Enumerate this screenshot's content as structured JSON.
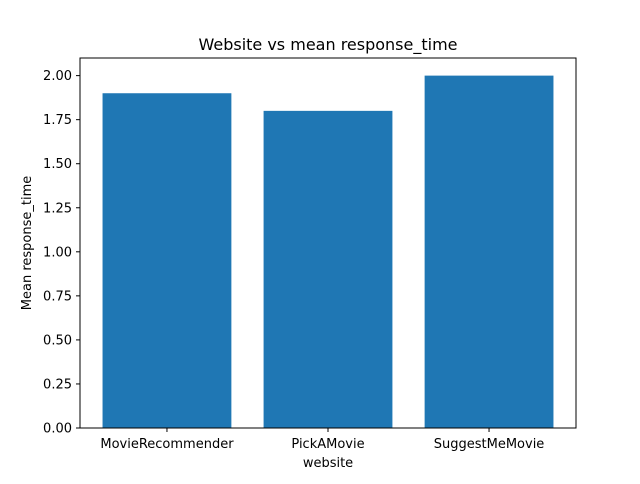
{
  "chart_data": {
    "type": "bar",
    "title": "Website vs mean response_time",
    "xlabel": "website",
    "ylabel": "Mean response_time",
    "categories": [
      "MovieRecommender",
      "PickAMovie",
      "SuggestMeMovie"
    ],
    "values": [
      1.9,
      1.8,
      2.0
    ],
    "ylim": [
      0,
      2.1
    ],
    "yticks": [
      0.0,
      0.25,
      0.5,
      0.75,
      1.0,
      1.25,
      1.5,
      1.75,
      2.0
    ],
    "ytick_labels": [
      "0.00",
      "0.25",
      "0.50",
      "0.75",
      "1.00",
      "1.25",
      "1.50",
      "1.75",
      "2.00"
    ],
    "bar_color": "#1f77b4",
    "grid": false,
    "legend": "none"
  }
}
